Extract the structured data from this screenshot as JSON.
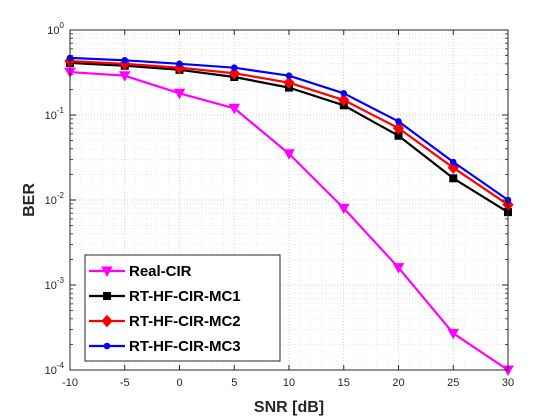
{
  "chart_data": {
    "type": "line",
    "xlabel": "SNR [dB]",
    "ylabel": "BER",
    "xlim": [
      -10,
      30
    ],
    "ylim": [
      0.0001,
      1
    ],
    "yscale": "log",
    "grid": "major and minor",
    "legend_position": "bottom-left",
    "x": [
      -10,
      -5,
      0,
      5,
      10,
      15,
      20,
      25,
      30
    ],
    "x_tick_labels": [
      "-10",
      "-5",
      "0",
      "5",
      "10",
      "15",
      "20",
      "25",
      "30"
    ],
    "y_ticks": [
      {
        "value": 1,
        "base": "10",
        "exp": "0"
      },
      {
        "value": 0.1,
        "base": "10",
        "exp": "-1"
      },
      {
        "value": 0.01,
        "base": "10",
        "exp": "-2"
      },
      {
        "value": 0.001,
        "base": "10",
        "exp": "-3"
      },
      {
        "value": 0.0001,
        "base": "10",
        "exp": "-4"
      }
    ],
    "series": [
      {
        "name": "Real-CIR",
        "color": "#ff00ff",
        "marker": "triangle-down",
        "values": [
          0.32,
          0.29,
          0.18,
          0.12,
          0.035,
          0.008,
          0.0016,
          0.00027,
          0.0001
        ]
      },
      {
        "name": "RT-HF-CIR-MC1",
        "color": "#000000",
        "marker": "square",
        "values": [
          0.41,
          0.38,
          0.34,
          0.28,
          0.21,
          0.13,
          0.057,
          0.018,
          0.0072
        ]
      },
      {
        "name": "RT-HF-CIR-MC2",
        "color": "#ff0000",
        "marker": "diamond",
        "values": [
          0.43,
          0.4,
          0.36,
          0.31,
          0.24,
          0.15,
          0.07,
          0.024,
          0.0088
        ]
      },
      {
        "name": "RT-HF-CIR-MC3",
        "color": "#0000ff",
        "marker": "circle",
        "values": [
          0.47,
          0.44,
          0.4,
          0.36,
          0.29,
          0.18,
          0.084,
          0.028,
          0.01
        ]
      }
    ]
  }
}
